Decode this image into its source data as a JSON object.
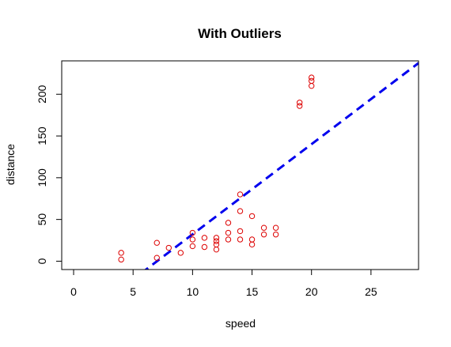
{
  "chart_data": {
    "type": "scatter",
    "title": "With Outliers",
    "xlabel": "speed",
    "ylabel": "distance",
    "xlim": [
      -1,
      29
    ],
    "ylim": [
      -10,
      240
    ],
    "x_ticks": [
      0,
      5,
      10,
      15,
      20,
      25
    ],
    "y_ticks": [
      0,
      50,
      100,
      150,
      200
    ],
    "grid": false,
    "legend": "none",
    "point_color": "#dd0000",
    "line_color": "#0000ee",
    "points": [
      {
        "x": 4,
        "y": 2
      },
      {
        "x": 4,
        "y": 10
      },
      {
        "x": 7,
        "y": 4
      },
      {
        "x": 7,
        "y": 22
      },
      {
        "x": 8,
        "y": 16
      },
      {
        "x": 9,
        "y": 10
      },
      {
        "x": 10,
        "y": 18
      },
      {
        "x": 10,
        "y": 26
      },
      {
        "x": 10,
        "y": 34
      },
      {
        "x": 11,
        "y": 17
      },
      {
        "x": 11,
        "y": 28
      },
      {
        "x": 12,
        "y": 14
      },
      {
        "x": 12,
        "y": 20
      },
      {
        "x": 12,
        "y": 24
      },
      {
        "x": 12,
        "y": 28
      },
      {
        "x": 13,
        "y": 26
      },
      {
        "x": 13,
        "y": 34
      },
      {
        "x": 13,
        "y": 46
      },
      {
        "x": 14,
        "y": 26
      },
      {
        "x": 14,
        "y": 36
      },
      {
        "x": 14,
        "y": 60
      },
      {
        "x": 14,
        "y": 80
      },
      {
        "x": 15,
        "y": 20
      },
      {
        "x": 15,
        "y": 26
      },
      {
        "x": 15,
        "y": 54
      },
      {
        "x": 16,
        "y": 32
      },
      {
        "x": 16,
        "y": 40
      },
      {
        "x": 17,
        "y": 32
      },
      {
        "x": 17,
        "y": 40
      },
      {
        "x": 19,
        "y": 186
      },
      {
        "x": 19,
        "y": 190
      },
      {
        "x": 20,
        "y": 210
      },
      {
        "x": 20,
        "y": 216
      },
      {
        "x": 20,
        "y": 220
      }
    ],
    "fit_line": {
      "intercept": -75.8,
      "slope": 10.8,
      "style": "dashed"
    }
  }
}
